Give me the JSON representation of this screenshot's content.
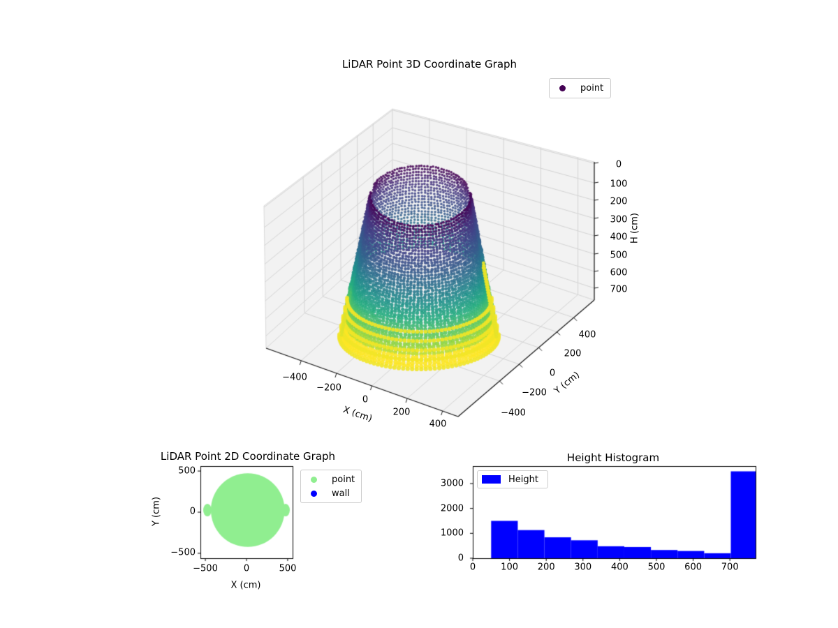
{
  "figure": {
    "background": "#ffffff"
  },
  "chart_data": [
    {
      "id": "lidar-3d",
      "type": "scatter",
      "projection": "3d",
      "title": "LiDAR Point 3D Coordinate Graph",
      "xlabel": "X (cm)",
      "ylabel": "Y (cm)",
      "zlabel": "H (cm)",
      "xticks": [
        -400,
        -200,
        0,
        200,
        400
      ],
      "yticks": [
        400,
        200,
        0,
        -200,
        -400
      ],
      "zticks": [
        0,
        100,
        200,
        300,
        400,
        500,
        600,
        700
      ],
      "xlim": [
        -570,
        570
      ],
      "ylim": [
        -570,
        570
      ],
      "zlim": [
        0,
        770
      ],
      "zaxis_inverted": true,
      "legend": [
        {
          "label": "point",
          "color": "#440154",
          "marker": "dot"
        }
      ],
      "colormap": "viridis",
      "colormap_stops": [
        "#440154",
        "#46327e",
        "#3f4889",
        "#365c8d",
        "#2b748e",
        "#21918c",
        "#27ad81",
        "#5ec962",
        "#aadc32",
        "#fde725"
      ],
      "point_cloud": {
        "shape": "truncated-cone wall scan, open top, color mapped to height",
        "top_radius_cm": 250,
        "bottom_radius_cm": 460,
        "height_cm": 770,
        "color_by": "H (cm)"
      }
    },
    {
      "id": "lidar-2d",
      "type": "scatter",
      "title": "LiDAR Point 2D Coordinate Graph",
      "xlabel": "X (cm)",
      "ylabel": "Y (cm)",
      "xticks": [
        -500,
        0,
        500
      ],
      "yticks": [
        500,
        0,
        -500
      ],
      "xlim": [
        -560,
        560
      ],
      "ylim": [
        -560,
        560
      ],
      "legend": [
        {
          "label": "point",
          "color": "#90ee90",
          "marker": "dot"
        },
        {
          "label": "wall",
          "color": "#0000ff",
          "marker": "dot"
        }
      ],
      "blob": {
        "cx_cm": 15,
        "cy_cm": 25,
        "radius_cm": 448,
        "color": "#90ee90",
        "side_bumps_at_cm": [
          -475,
          475
        ]
      }
    },
    {
      "id": "height-histogram",
      "type": "bar",
      "title": "Height Histogram",
      "legend": [
        {
          "label": "Height",
          "color": "#0000ff",
          "marker": "patch"
        }
      ],
      "bar_color": "#0000ff",
      "bin_start": 50,
      "bin_width": 72.5,
      "values": [
        1500,
        1130,
        840,
        720,
        480,
        450,
        330,
        290,
        200,
        3490
      ],
      "xticks": [
        0,
        100,
        200,
        300,
        400,
        500,
        600,
        700
      ],
      "yticks": [
        0,
        1000,
        2000,
        3000
      ],
      "xlim": [
        0,
        770
      ],
      "ylim": [
        0,
        3700
      ]
    }
  ]
}
